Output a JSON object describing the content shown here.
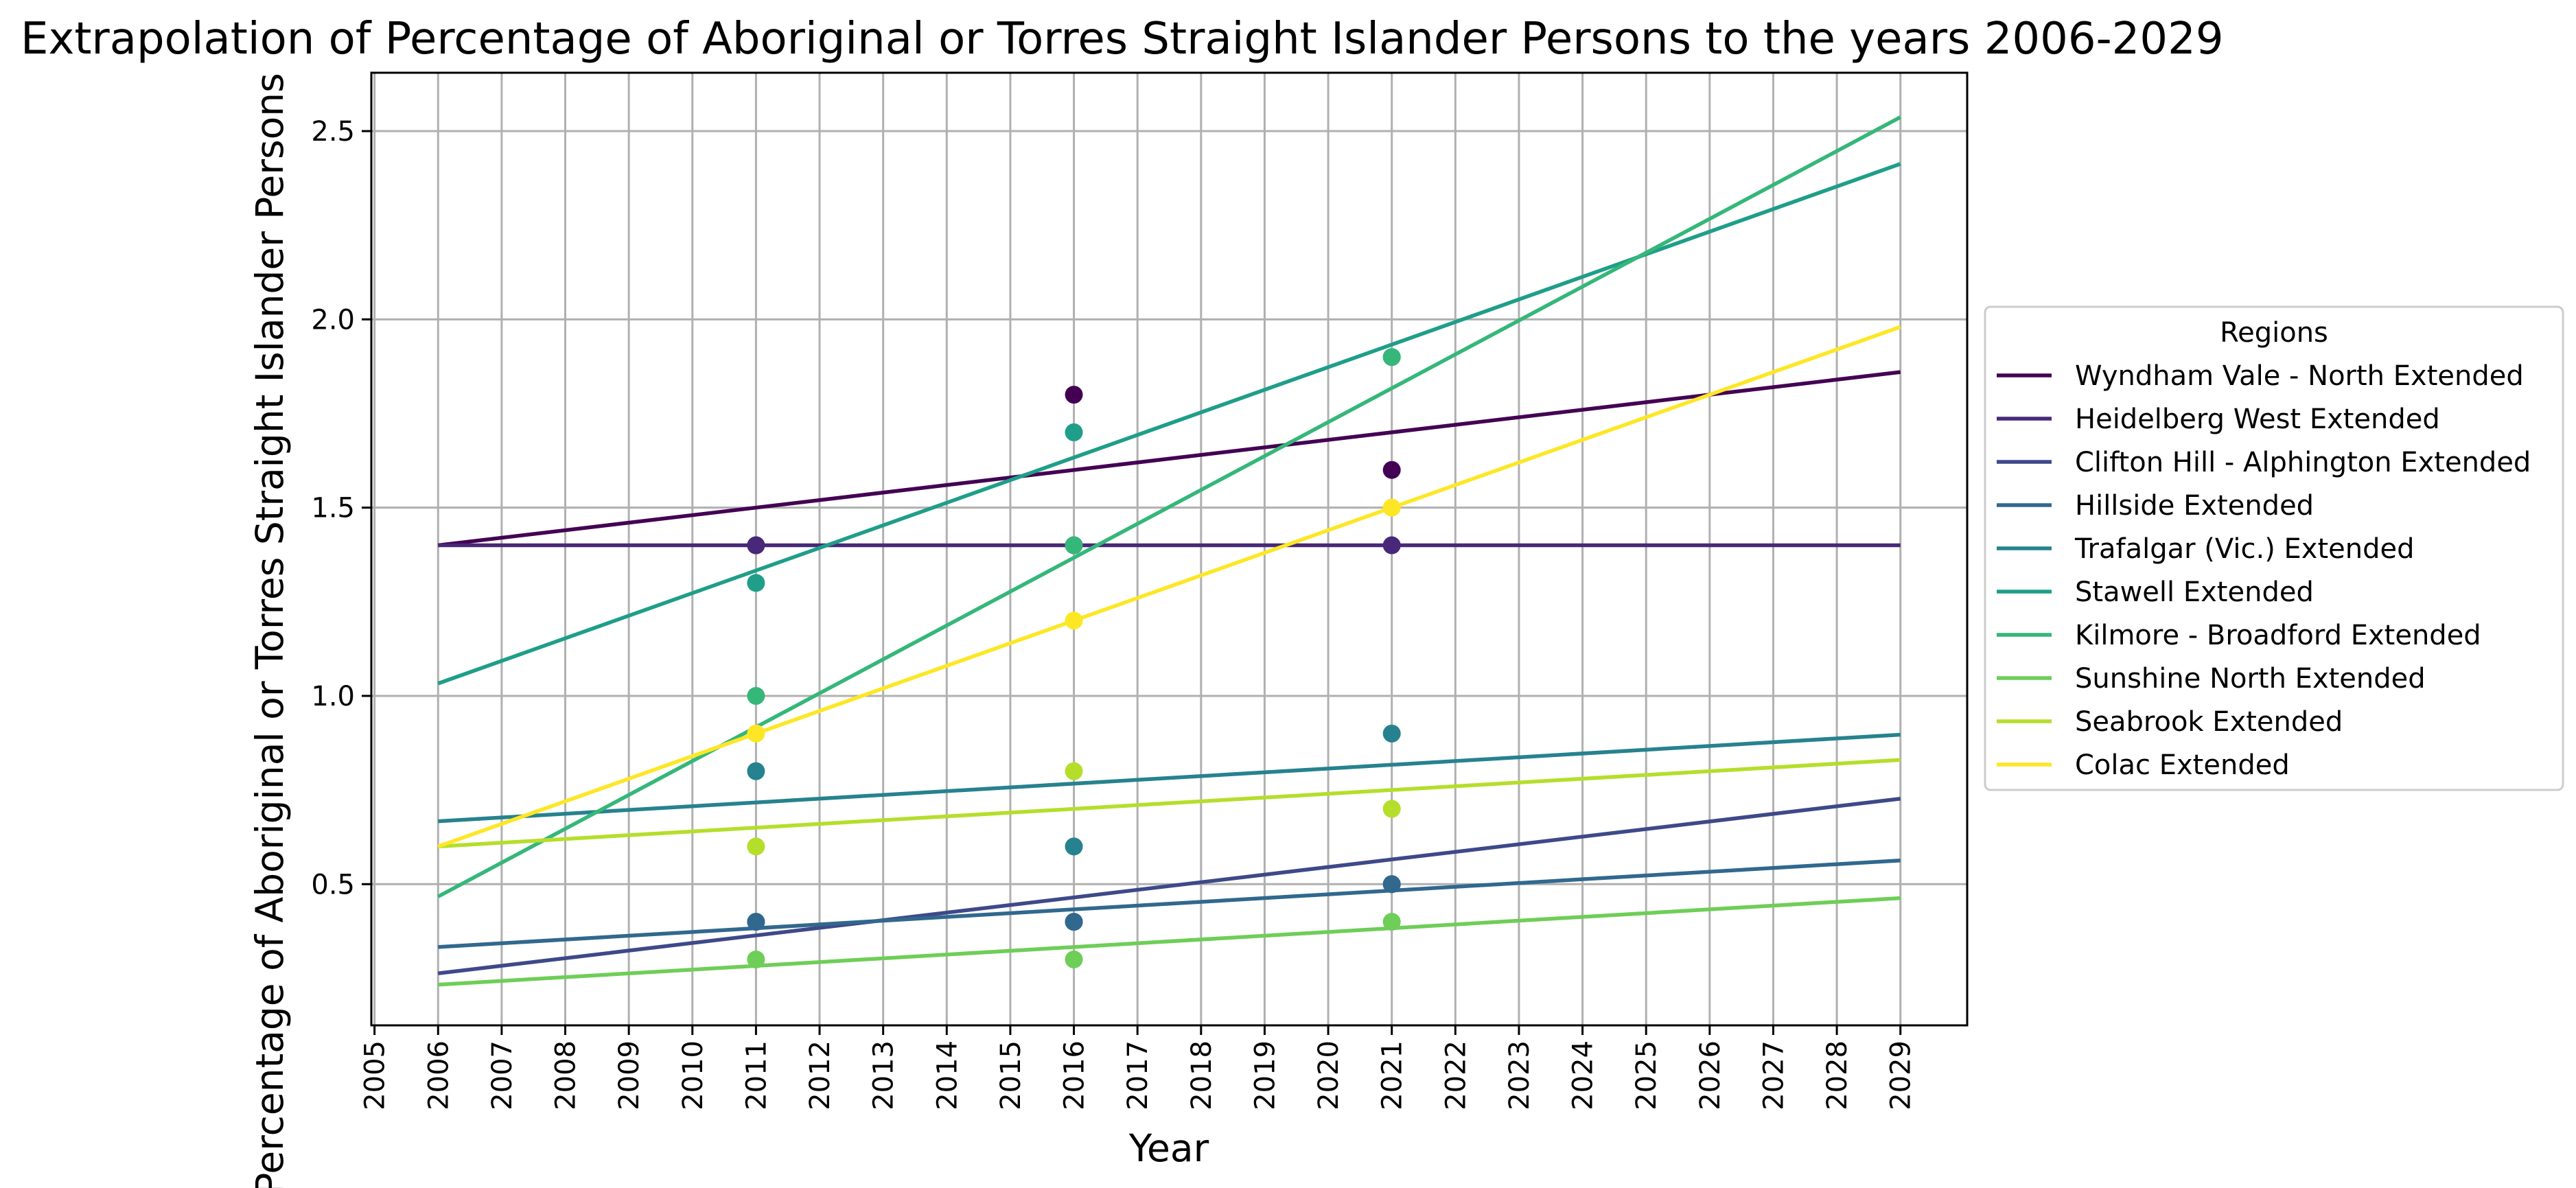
{
  "chart_data": {
    "type": "line",
    "title": "Extrapolation of Percentage of Aboriginal or Torres Straight Islander Persons to the years 2006-2029",
    "xlabel": "Year",
    "ylabel": "Percentage of Aboriginal or Torres Straight Islander Persons",
    "xlim": [
      2004.95,
      2030.05
    ],
    "ylim": [
      0.125,
      2.655
    ],
    "x_ticks": [
      2005,
      2006,
      2007,
      2008,
      2009,
      2010,
      2011,
      2012,
      2013,
      2014,
      2015,
      2016,
      2017,
      2018,
      2019,
      2020,
      2021,
      2022,
      2023,
      2024,
      2025,
      2026,
      2027,
      2028,
      2029
    ],
    "y_ticks": [
      0.5,
      1.0,
      1.5,
      2.0,
      2.5
    ],
    "y_tick_labels": [
      "0.5",
      "1.0",
      "1.5",
      "2.0",
      "2.5"
    ],
    "grid": true,
    "legend_title": "Regions",
    "legend_placement": "outside-right",
    "series": [
      {
        "name": "Wyndham Vale - North Extended",
        "color": "#440154",
        "line": [
          [
            2006,
            1.4
          ],
          [
            2029,
            1.86
          ]
        ],
        "points": [
          [
            2011,
            1.4
          ],
          [
            2016,
            1.8
          ],
          [
            2021,
            1.6
          ]
        ]
      },
      {
        "name": "Heidelberg West Extended",
        "color": "#482878",
        "line": [
          [
            2006,
            1.4
          ],
          [
            2029,
            1.4
          ]
        ],
        "points": [
          [
            2011,
            1.4
          ],
          [
            2016,
            1.4
          ],
          [
            2021,
            1.4
          ]
        ]
      },
      {
        "name": "Clifton Hill - Alphington Extended",
        "color": "#3e4989",
        "line": [
          [
            2006,
            0.263
          ],
          [
            2029,
            0.727
          ]
        ],
        "points": [
          [
            2011,
            0.4
          ],
          [
            2016,
            0.4
          ],
          [
            2021,
            0.5
          ]
        ]
      },
      {
        "name": "Hillside Extended",
        "color": "#31688e",
        "line": [
          [
            2006,
            0.333
          ],
          [
            2029,
            0.563
          ]
        ],
        "points": [
          [
            2011,
            0.4
          ],
          [
            2016,
            0.4
          ],
          [
            2021,
            0.5
          ]
        ]
      },
      {
        "name": "Trafalgar (Vic.) Extended",
        "color": "#26828e",
        "line": [
          [
            2006,
            0.667
          ],
          [
            2029,
            0.897
          ]
        ],
        "points": [
          [
            2011,
            0.8
          ],
          [
            2016,
            0.6
          ],
          [
            2021,
            0.9
          ]
        ]
      },
      {
        "name": "Stawell Extended",
        "color": "#1f9e89",
        "line": [
          [
            2006,
            1.033
          ],
          [
            2029,
            2.413
          ]
        ],
        "points": [
          [
            2011,
            1.3
          ],
          [
            2016,
            1.7
          ],
          [
            2021,
            1.9
          ]
        ]
      },
      {
        "name": "Kilmore - Broadford Extended",
        "color": "#35b779",
        "line": [
          [
            2006,
            0.467
          ],
          [
            2029,
            2.537
          ]
        ],
        "points": [
          [
            2011,
            1.0
          ],
          [
            2016,
            1.4
          ],
          [
            2021,
            1.9
          ]
        ]
      },
      {
        "name": "Sunshine North Extended",
        "color": "#6ece58",
        "line": [
          [
            2006,
            0.233
          ],
          [
            2029,
            0.463
          ]
        ],
        "points": [
          [
            2011,
            0.3
          ],
          [
            2016,
            0.3
          ],
          [
            2021,
            0.4
          ]
        ]
      },
      {
        "name": "Seabrook Extended",
        "color": "#b5de2b",
        "line": [
          [
            2006,
            0.6
          ],
          [
            2029,
            0.83
          ]
        ],
        "points": [
          [
            2011,
            0.6
          ],
          [
            2016,
            0.8
          ],
          [
            2021,
            0.7
          ]
        ]
      },
      {
        "name": "Colac Extended",
        "color": "#fde725",
        "line": [
          [
            2006,
            0.6
          ],
          [
            2029,
            1.98
          ]
        ],
        "points": [
          [
            2011,
            0.9
          ],
          [
            2016,
            1.2
          ],
          [
            2021,
            1.5
          ]
        ]
      }
    ]
  }
}
